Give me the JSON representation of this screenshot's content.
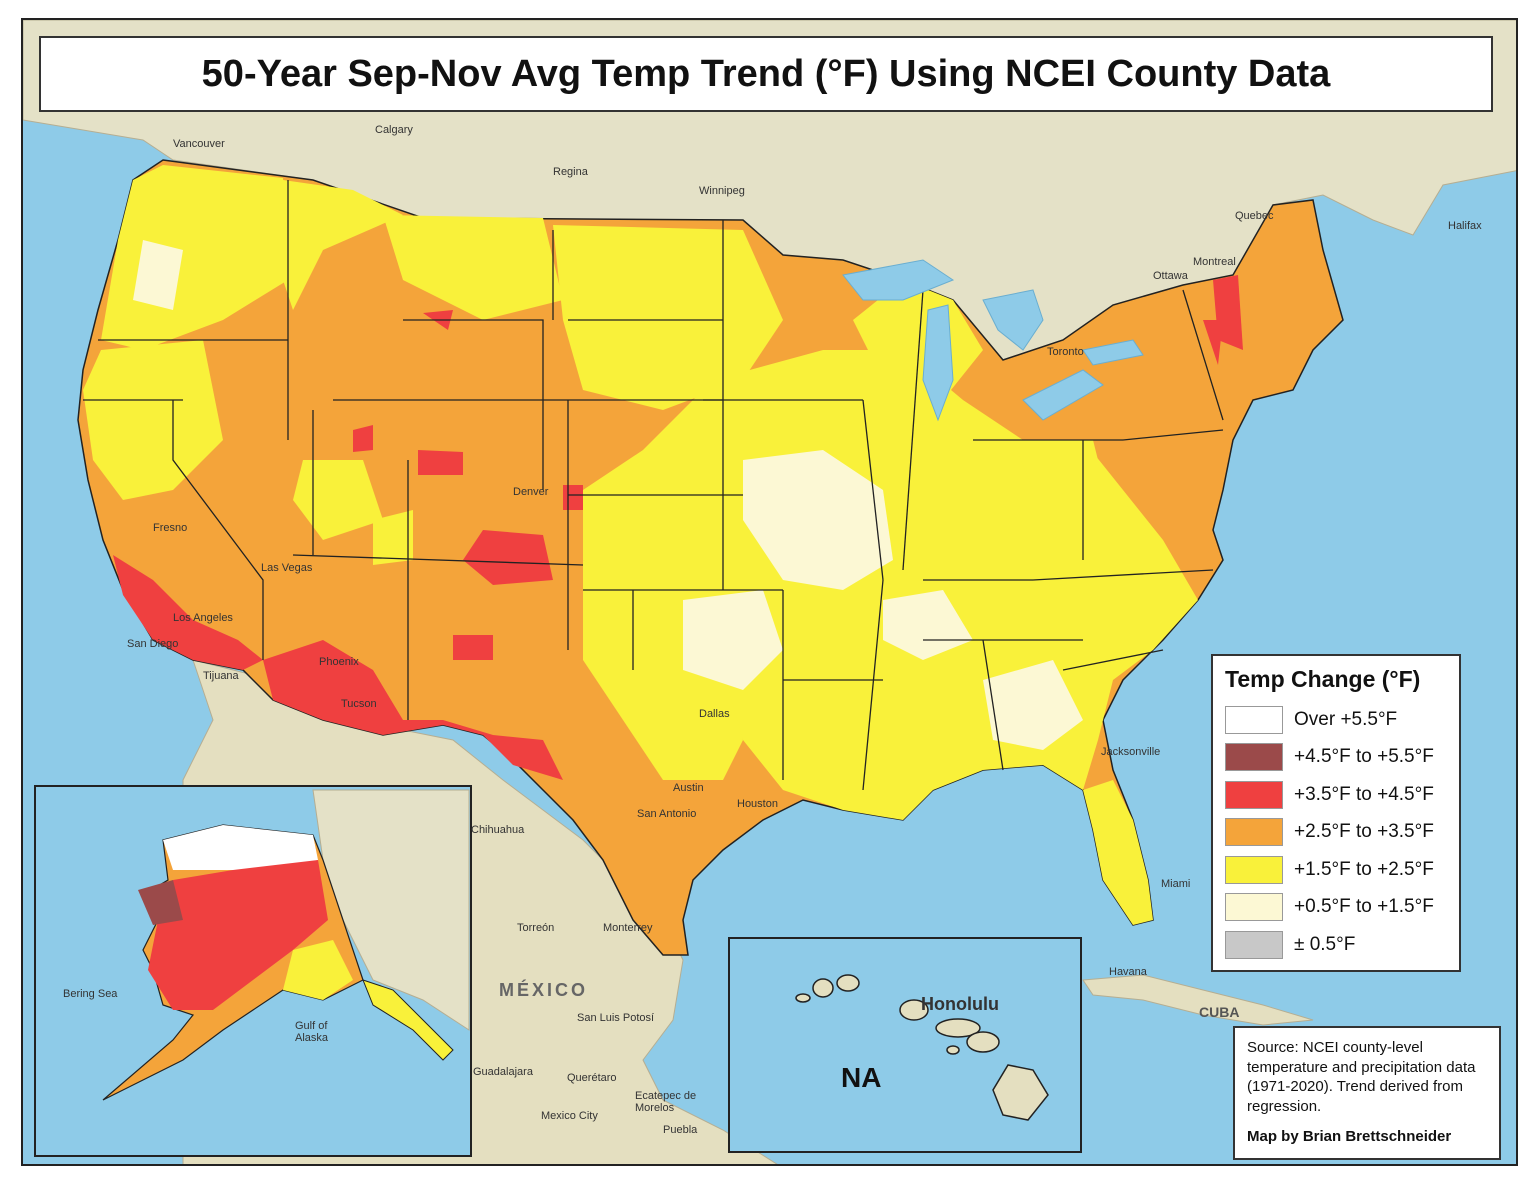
{
  "title": "50-Year Sep-Nov Avg Temp Trend (°F) Using NCEI County Data",
  "legend": {
    "title": "Temp Change (°F)",
    "items": [
      {
        "label": "Over +5.5°F",
        "color": "#ffffff"
      },
      {
        "label": "+4.5°F to +5.5°F",
        "color": "#9b4a4a"
      },
      {
        "label": "+3.5°F to +4.5°F",
        "color": "#ef4040"
      },
      {
        "label": "+2.5°F to +3.5°F",
        "color": "#f4a43a"
      },
      {
        "label": "+1.5°F to +2.5°F",
        "color": "#f9f13a"
      },
      {
        "label": "+0.5°F to +1.5°F",
        "color": "#fcf8d4"
      },
      {
        "label": "± 0.5°F",
        "color": "#c8c8c8"
      }
    ]
  },
  "source": {
    "text": "Source: NCEI county-level temperature and precipitation data (1971-2020). Trend derived from regression.",
    "credit": "Map by Brian Brettschneider"
  },
  "hawaii": {
    "no_data": "NA",
    "city": "Honolulu"
  },
  "places": {
    "mexico": "MÉXICO",
    "calgary": "Calgary",
    "vancouver": "Vancouver",
    "regina": "Regina",
    "winnipeg": "Winnipeg",
    "ottawa": "Ottawa",
    "montreal": "Montreal",
    "quebec": "Quebec",
    "toronto": "Toronto",
    "halifax": "Halifax",
    "torreon": "Torreón",
    "monterrey": "Monterrey",
    "san_luis_potosi": "San Luis Potosí",
    "guadalajara": "Guadalajara",
    "queretaro": "Querétaro",
    "mexico_city": "Mexico City",
    "ecatepec": "Ecatepec de Morelos",
    "puebla": "Puebla",
    "havana": "Havana",
    "cuba": "CUBA",
    "los_angeles": "Los Angeles",
    "san_diego": "San Diego",
    "tijuana": "Tijuana",
    "phoenix": "Phoenix",
    "tucson": "Tucson",
    "las_vegas": "Las Vegas",
    "denver": "Denver",
    "fresno": "Fresno",
    "jacksonville": "Jacksonville",
    "miami": "Miami",
    "houston": "Houston",
    "austin": "Austin",
    "san_antonio": "San Antonio",
    "dallas": "Dallas",
    "chihuahua": "Chihuahua",
    "bering_sea": "Bering Sea",
    "gulf_of_alaska": "Gulf of Alaska"
  }
}
